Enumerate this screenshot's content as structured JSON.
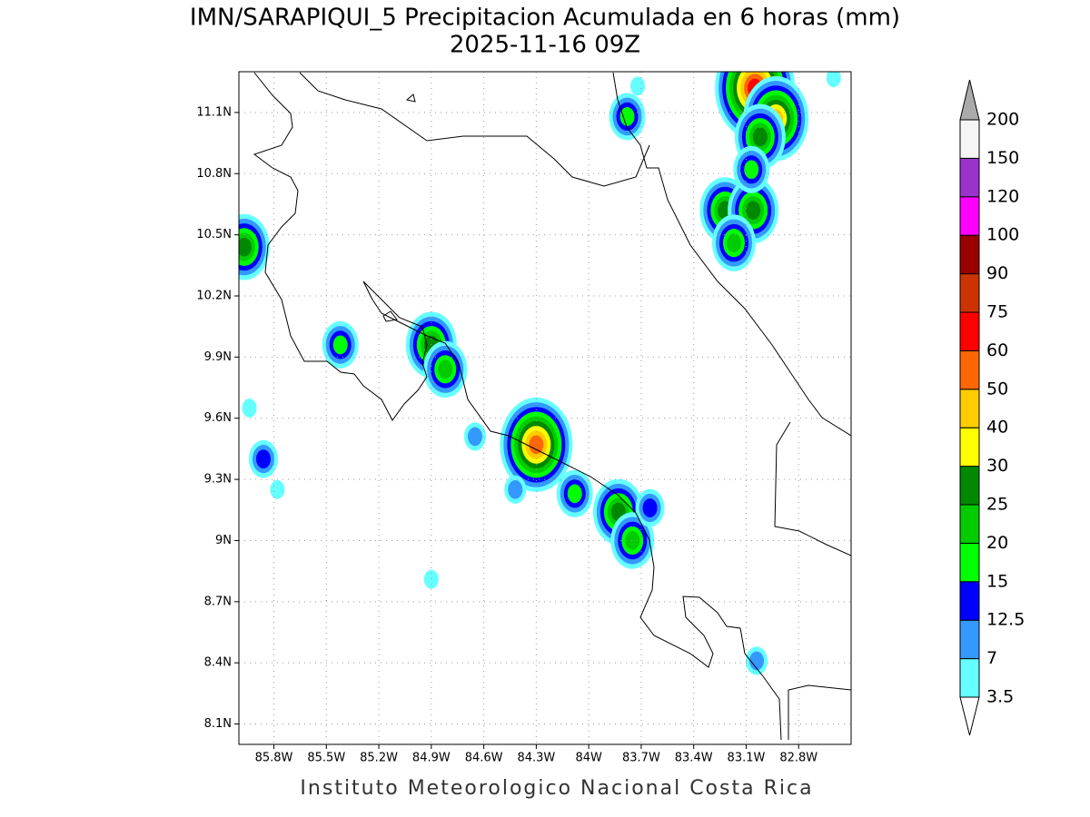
{
  "title": "IMN/SARAPIQUI_5 Precipitacion Acumulada en 6 horas (mm)",
  "subtitle": "2025-11-16 09Z",
  "footer": "Instituto Meteorologico Nacional Costa Rica",
  "map": {
    "xlim": [
      -86.0,
      -82.5
    ],
    "ylim": [
      8.0,
      11.3
    ],
    "grid": true,
    "xticks": [
      {
        "value": -85.8,
        "label": "85.8W"
      },
      {
        "value": -85.5,
        "label": "85.5W"
      },
      {
        "value": -85.2,
        "label": "85.2W"
      },
      {
        "value": -84.9,
        "label": "84.9W"
      },
      {
        "value": -84.6,
        "label": "84.6W"
      },
      {
        "value": -84.3,
        "label": "84.3W"
      },
      {
        "value": -84.0,
        "label": "84W"
      },
      {
        "value": -83.7,
        "label": "83.7W"
      },
      {
        "value": -83.4,
        "label": "83.4W"
      },
      {
        "value": -83.1,
        "label": "83.1W"
      },
      {
        "value": -82.8,
        "label": "82.8W"
      }
    ],
    "yticks": [
      {
        "value": 11.1,
        "label": "11.1N"
      },
      {
        "value": 10.8,
        "label": "10.8N"
      },
      {
        "value": 10.5,
        "label": "10.5N"
      },
      {
        "value": 10.2,
        "label": "10.2N"
      },
      {
        "value": 9.9,
        "label": "9.9N"
      },
      {
        "value": 9.6,
        "label": "9.6N"
      },
      {
        "value": 9.3,
        "label": "9.3N"
      },
      {
        "value": 9.0,
        "label": "9N"
      },
      {
        "value": 8.7,
        "label": "8.7N"
      },
      {
        "value": 8.4,
        "label": "8.4N"
      },
      {
        "value": 8.1,
        "label": "8.1N"
      }
    ]
  },
  "colorbar": {
    "levels": [
      3.5,
      7,
      12.5,
      15,
      20,
      25,
      30,
      40,
      50,
      60,
      75,
      90,
      100,
      120,
      150,
      200
    ],
    "colors": [
      "#66ffff",
      "#3399ff",
      "#0000ff",
      "#00ff00",
      "#00cc00",
      "#008800",
      "#ffff00",
      "#ffcc00",
      "#ff6600",
      "#ff0000",
      "#cc3300",
      "#990000",
      "#ff00ff",
      "#9933cc",
      "#f5f5f5"
    ],
    "over_color": "#aaaaaa",
    "under_color": "#ffffff"
  },
  "cells": [
    {
      "lon": -84.3,
      "lat": 9.47,
      "peak": 50
    },
    {
      "lon": -84.9,
      "lat": 9.96,
      "peak": 25
    },
    {
      "lon": -84.82,
      "lat": 9.84,
      "peak": 20
    },
    {
      "lon": -85.42,
      "lat": 9.96,
      "peak": 15
    },
    {
      "lon": -85.97,
      "lat": 10.44,
      "peak": 25
    },
    {
      "lon": -83.83,
      "lat": 9.14,
      "peak": 25
    },
    {
      "lon": -83.75,
      "lat": 9.0,
      "peak": 20
    },
    {
      "lon": -84.08,
      "lat": 9.23,
      "peak": 15
    },
    {
      "lon": -83.65,
      "lat": 9.16,
      "peak": 12.5
    },
    {
      "lon": -83.05,
      "lat": 11.22,
      "peak": 60
    },
    {
      "lon": -82.93,
      "lat": 11.07,
      "peak": 40
    },
    {
      "lon": -83.02,
      "lat": 10.98,
      "peak": 25
    },
    {
      "lon": -83.22,
      "lat": 10.62,
      "peak": 25
    },
    {
      "lon": -83.06,
      "lat": 10.62,
      "peak": 25
    },
    {
      "lon": -83.17,
      "lat": 10.46,
      "peak": 20
    },
    {
      "lon": -83.07,
      "lat": 10.82,
      "peak": 15
    },
    {
      "lon": -83.78,
      "lat": 11.08,
      "peak": 15
    },
    {
      "lon": -85.86,
      "lat": 9.4,
      "peak": 12.5
    },
    {
      "lon": -85.78,
      "lat": 9.25,
      "peak": 3.5
    },
    {
      "lon": -83.04,
      "lat": 8.41,
      "peak": 7
    },
    {
      "lon": -83.72,
      "lat": 11.23,
      "peak": 3.5
    },
    {
      "lon": -82.6,
      "lat": 11.27,
      "peak": 3.5
    },
    {
      "lon": -84.42,
      "lat": 9.25,
      "peak": 7
    },
    {
      "lon": -84.65,
      "lat": 9.51,
      "peak": 7
    },
    {
      "lon": -85.94,
      "lat": 9.65,
      "peak": 3.5
    },
    {
      "lon": -84.9,
      "lat": 8.81,
      "peak": 3.5
    }
  ]
}
